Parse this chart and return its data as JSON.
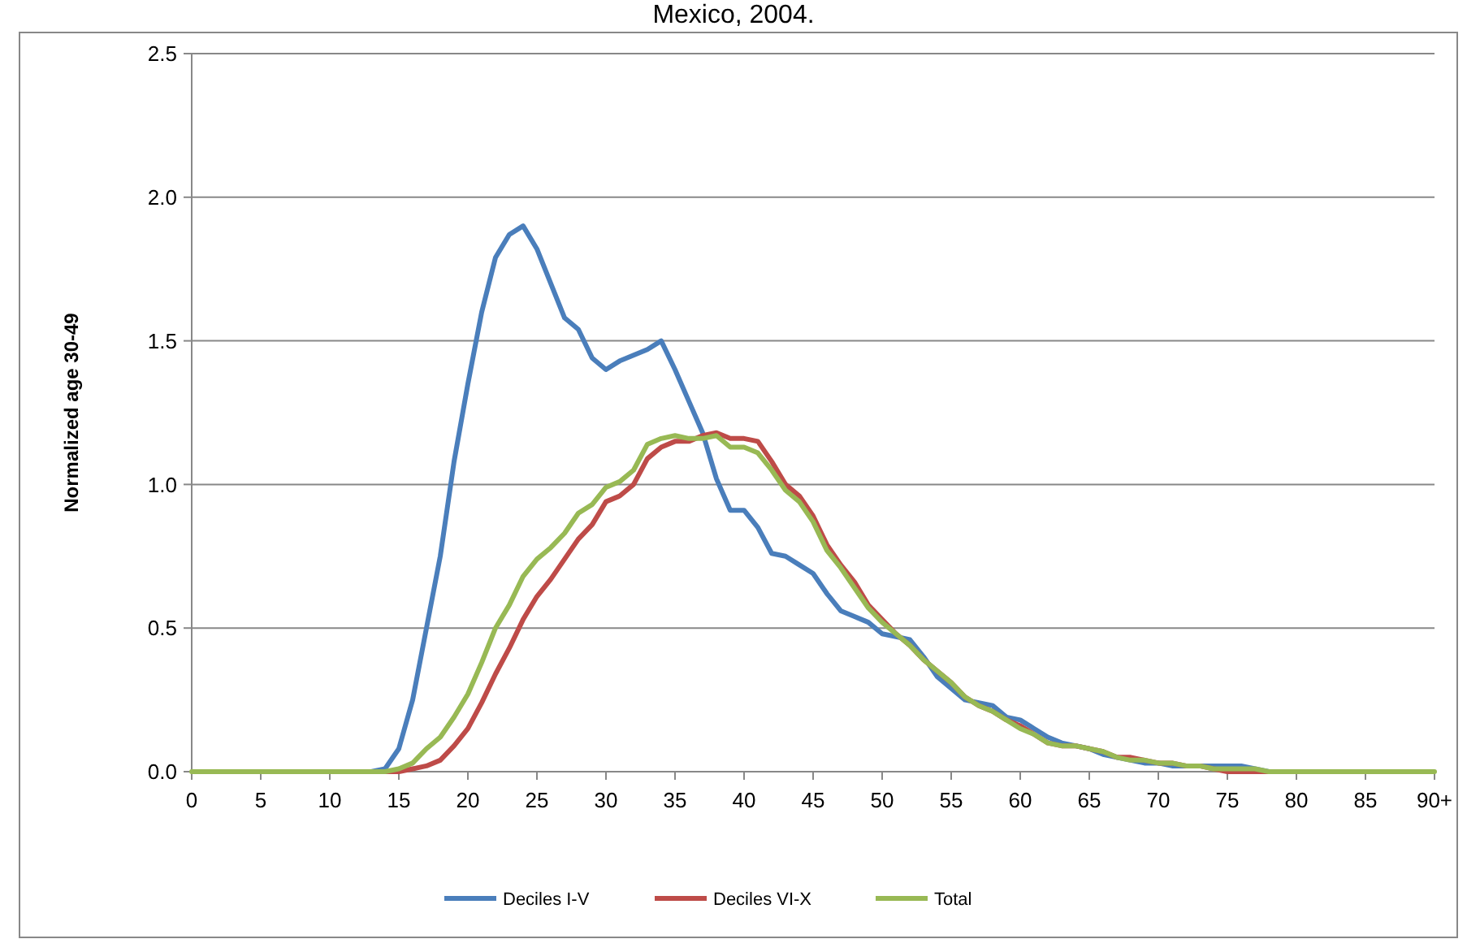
{
  "chart_data": {
    "type": "line",
    "title": "Mexico, 2004.",
    "ylabel": "Normalized age 30-49",
    "categories": [
      "0",
      null,
      null,
      null,
      null,
      "5",
      null,
      null,
      null,
      null,
      "10",
      null,
      null,
      null,
      null,
      "15",
      null,
      null,
      null,
      null,
      "20",
      null,
      null,
      null,
      null,
      "25",
      null,
      null,
      null,
      null,
      "30",
      null,
      null,
      null,
      null,
      "35",
      null,
      null,
      null,
      null,
      "40",
      null,
      null,
      null,
      null,
      "45",
      null,
      null,
      null,
      null,
      "50",
      null,
      null,
      null,
      null,
      "55",
      null,
      null,
      null,
      null,
      "60",
      null,
      null,
      null,
      null,
      "65",
      null,
      null,
      null,
      null,
      "70",
      null,
      null,
      null,
      null,
      "75",
      null,
      null,
      null,
      null,
      "80",
      null,
      null,
      null,
      null,
      "85",
      null,
      null,
      null,
      null,
      "90+"
    ],
    "ylim": [
      0,
      2.5
    ],
    "yticks": [
      {
        "value": 0,
        "label": "0.0"
      },
      {
        "value": 0.5,
        "label": "0.5"
      },
      {
        "value": 1,
        "label": "1.0"
      },
      {
        "value": 1.5,
        "label": "1.5"
      },
      {
        "value": 2,
        "label": "2.0"
      },
      {
        "value": 2.5,
        "label": "2.5"
      }
    ],
    "grid": "y",
    "legend": "bottom",
    "marker": "none",
    "line_style": "solid",
    "series": [
      {
        "name": "Deciles I-V",
        "color": "#4a7ebb",
        "values": [
          null,
          null,
          null,
          null,
          null,
          null,
          null,
          null,
          null,
          null,
          null,
          null,
          0,
          0,
          0.01,
          0.08,
          0.25,
          0.5,
          0.75,
          1.08,
          1.35,
          1.6,
          1.79,
          1.87,
          1.9,
          1.82,
          1.7,
          1.58,
          1.54,
          1.44,
          1.4,
          1.43,
          1.45,
          1.47,
          1.5,
          1.4,
          1.29,
          1.18,
          1.02,
          0.91,
          0.91,
          0.85,
          0.76,
          0.75,
          0.72,
          0.69,
          0.62,
          0.56,
          0.54,
          0.52,
          0.48,
          0.47,
          0.46,
          0.4,
          0.33,
          0.29,
          0.25,
          0.24,
          0.23,
          0.19,
          0.18,
          0.15,
          0.12,
          0.1,
          0.09,
          0.08,
          0.06,
          0.05,
          0.04,
          0.03,
          0.03,
          0.02,
          0.02,
          0.02,
          0.02,
          0.02,
          0.02,
          0.01,
          0,
          null,
          null,
          null,
          null,
          null,
          null,
          null,
          null,
          null,
          null,
          null,
          null
        ]
      },
      {
        "name": "Deciles VI-X",
        "color": "#be4b48",
        "values": [
          null,
          null,
          null,
          null,
          null,
          null,
          null,
          null,
          null,
          null,
          null,
          null,
          null,
          0,
          0,
          0,
          0.01,
          0.02,
          0.04,
          0.09,
          0.15,
          0.24,
          0.34,
          0.43,
          0.53,
          0.61,
          0.67,
          0.74,
          0.81,
          0.86,
          0.94,
          0.96,
          1.0,
          1.09,
          1.13,
          1.15,
          1.15,
          1.17,
          1.18,
          1.16,
          1.16,
          1.15,
          1.08,
          1.0,
          0.96,
          0.89,
          0.79,
          0.72,
          0.66,
          0.58,
          0.53,
          0.48,
          0.44,
          0.39,
          0.35,
          0.31,
          0.26,
          0.23,
          0.21,
          0.18,
          0.16,
          0.13,
          0.1,
          0.09,
          0.09,
          0.08,
          0.07,
          0.05,
          0.05,
          0.04,
          0.03,
          0.03,
          0.02,
          0.02,
          0.01,
          0,
          0,
          0,
          0,
          0,
          null,
          null,
          null,
          null,
          null,
          null,
          null,
          null,
          null,
          null,
          null
        ]
      },
      {
        "name": "Total",
        "color": "#98b954",
        "values": [
          0,
          0,
          0,
          0,
          0,
          0,
          0,
          0,
          0,
          0,
          0,
          0,
          0,
          0,
          0,
          0.01,
          0.03,
          0.08,
          0.12,
          0.19,
          0.27,
          0.38,
          0.5,
          0.58,
          0.68,
          0.74,
          0.78,
          0.83,
          0.9,
          0.93,
          0.99,
          1.01,
          1.05,
          1.14,
          1.16,
          1.17,
          1.16,
          1.16,
          1.17,
          1.13,
          1.13,
          1.11,
          1.05,
          0.98,
          0.94,
          0.87,
          0.77,
          0.71,
          0.64,
          0.57,
          0.52,
          0.48,
          0.44,
          0.39,
          0.35,
          0.31,
          0.26,
          0.23,
          0.21,
          0.18,
          0.15,
          0.13,
          0.1,
          0.09,
          0.09,
          0.08,
          0.07,
          0.05,
          0.04,
          0.04,
          0.03,
          0.03,
          0.02,
          0.02,
          0.01,
          0.01,
          0.01,
          0.01,
          0,
          0,
          0,
          0,
          0,
          0,
          0,
          0,
          0,
          0,
          0,
          0,
          0
        ]
      }
    ]
  }
}
